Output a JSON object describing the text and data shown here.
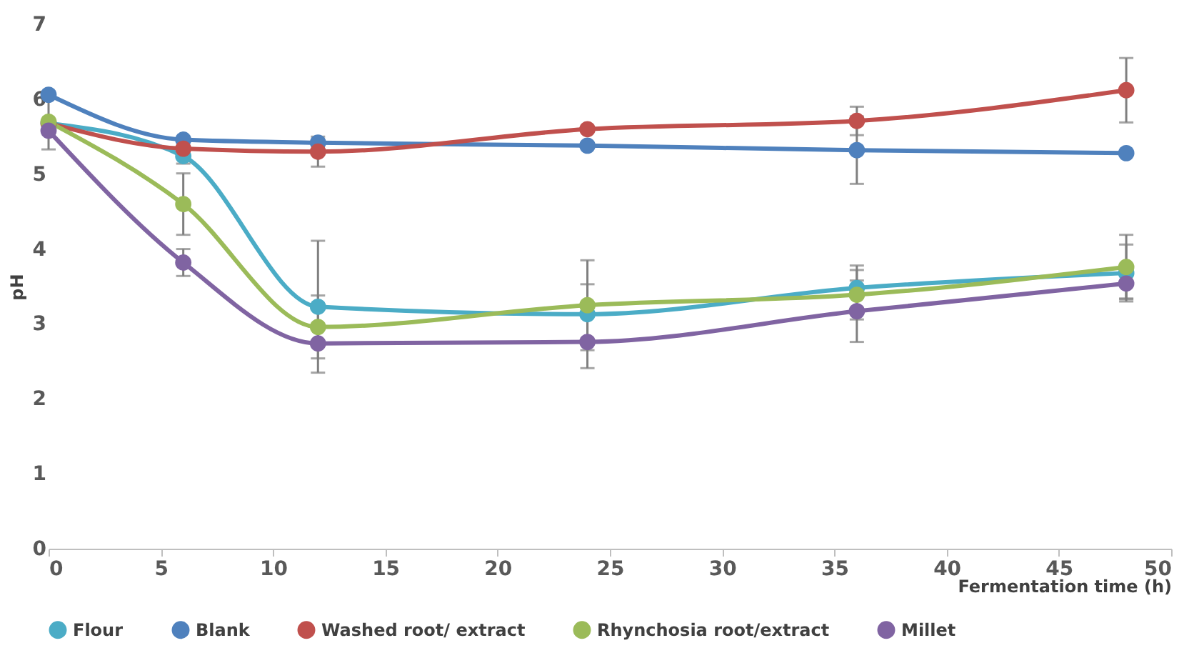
{
  "chart_data": {
    "type": "line",
    "xlabel": "Fermentation time (h)",
    "ylabel": "pH",
    "x": [
      0,
      6,
      12,
      24,
      36,
      48
    ],
    "xlim": [
      0,
      50
    ],
    "xticks": [
      0,
      5,
      10,
      15,
      20,
      25,
      30,
      35,
      40,
      45,
      50
    ],
    "ylim": [
      0,
      7
    ],
    "yticks": [
      0,
      1,
      2,
      3,
      4,
      5,
      6,
      7
    ],
    "grid": false,
    "legend": "bottom",
    "marker": "circle",
    "line_style": "solid",
    "series": [
      {
        "name": "Flour",
        "color": "#4bacc6",
        "values": [
          5.68,
          5.24,
          3.23,
          3.13,
          3.48,
          3.68
        ],
        "errors": [
          0.35,
          0.1,
          0.88,
          0.4,
          0.3,
          0.38
        ]
      },
      {
        "name": "Blank",
        "color": "#4f81bd",
        "values": [
          6.06,
          5.46,
          5.42,
          5.38,
          5.32,
          5.28
        ],
        "errors": [
          null,
          null,
          null,
          null,
          0.45,
          null
        ]
      },
      {
        "name": "Washed root/ extract",
        "color": "#c0504d",
        "values": [
          5.68,
          5.34,
          5.3,
          5.6,
          5.71,
          6.12
        ],
        "errors": [
          null,
          null,
          0.2,
          null,
          0.19,
          0.43
        ]
      },
      {
        "name": "Rhynchosia root/extract",
        "color": "#9bbb59",
        "values": [
          5.7,
          4.6,
          2.96,
          3.25,
          3.39,
          3.76
        ],
        "errors": [
          null,
          0.41,
          0.42,
          0.6,
          0.33,
          0.43
        ]
      },
      {
        "name": "Millet",
        "color": "#8064a2",
        "values": [
          5.58,
          3.82,
          2.74,
          2.76,
          3.17,
          3.54
        ],
        "errors": [
          null,
          0.18,
          null,
          0.35,
          0.41,
          0.2
        ]
      }
    ]
  }
}
